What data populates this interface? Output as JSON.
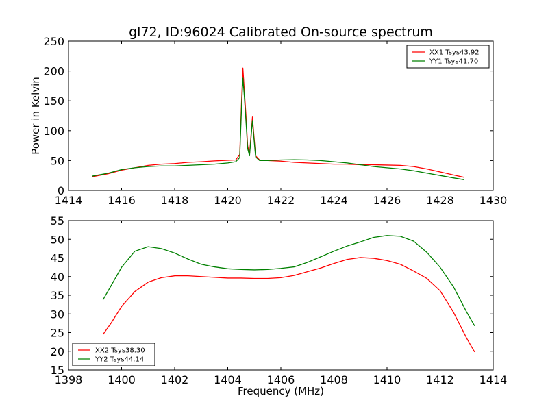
{
  "figure": {
    "title": "gl72, ID:96024 Calibrated On-source spectrum",
    "xlabel": "Frequency (MHz)"
  },
  "chart_data": [
    {
      "type": "line",
      "title": "gl72, ID:96024 Calibrated On-source spectrum",
      "xlabel": "",
      "ylabel": "Power in Kelvin",
      "xlim": [
        1414,
        1430
      ],
      "ylim": [
        0,
        250
      ],
      "xticks": [
        1414,
        1416,
        1418,
        1420,
        1422,
        1424,
        1426,
        1428,
        1430
      ],
      "yticks": [
        0,
        50,
        100,
        150,
        200,
        250
      ],
      "grid": false,
      "legend_position": "top-right",
      "series": [
        {
          "name": "XX1 Tsys43.92",
          "color": "#ff0000",
          "points": [
            [
              1414.9,
              23
            ],
            [
              1415.5,
              28
            ],
            [
              1416.0,
              34
            ],
            [
              1416.5,
              38
            ],
            [
              1417.0,
              42
            ],
            [
              1417.5,
              44
            ],
            [
              1418.0,
              45
            ],
            [
              1418.5,
              47
            ],
            [
              1419.0,
              48
            ],
            [
              1419.5,
              49.5
            ],
            [
              1420.0,
              50.5
            ],
            [
              1420.3,
              51
            ],
            [
              1420.45,
              60
            ],
            [
              1420.52,
              150
            ],
            [
              1420.57,
              205
            ],
            [
              1420.62,
              170
            ],
            [
              1420.68,
              130
            ],
            [
              1420.75,
              75
            ],
            [
              1420.82,
              60
            ],
            [
              1420.88,
              95
            ],
            [
              1420.93,
              123
            ],
            [
              1420.98,
              95
            ],
            [
              1421.05,
              58
            ],
            [
              1421.2,
              51
            ],
            [
              1421.5,
              50
            ],
            [
              1422.0,
              49
            ],
            [
              1422.5,
              47
            ],
            [
              1423.0,
              46
            ],
            [
              1423.5,
              45
            ],
            [
              1424.0,
              44
            ],
            [
              1424.5,
              44
            ],
            [
              1425.0,
              43
            ],
            [
              1425.5,
              43
            ],
            [
              1426.0,
              42.5
            ],
            [
              1426.5,
              42
            ],
            [
              1427.0,
              40
            ],
            [
              1427.5,
              36
            ],
            [
              1428.0,
              31
            ],
            [
              1428.5,
              26
            ],
            [
              1428.9,
              22
            ]
          ]
        },
        {
          "name": "YY1 Tsys41.70",
          "color": "#008000",
          "points": [
            [
              1414.9,
              24
            ],
            [
              1415.5,
              29
            ],
            [
              1416.0,
              35
            ],
            [
              1416.5,
              38
            ],
            [
              1417.0,
              40
            ],
            [
              1417.5,
              41
            ],
            [
              1418.0,
              41
            ],
            [
              1418.5,
              42
            ],
            [
              1419.0,
              43
            ],
            [
              1419.5,
              44
            ],
            [
              1420.0,
              46
            ],
            [
              1420.3,
              48
            ],
            [
              1420.45,
              55
            ],
            [
              1420.52,
              140
            ],
            [
              1420.57,
              188
            ],
            [
              1420.62,
              160
            ],
            [
              1420.68,
              120
            ],
            [
              1420.75,
              70
            ],
            [
              1420.82,
              58
            ],
            [
              1420.88,
              90
            ],
            [
              1420.93,
              117
            ],
            [
              1420.98,
              90
            ],
            [
              1421.05,
              56
            ],
            [
              1421.2,
              50
            ],
            [
              1421.5,
              50
            ],
            [
              1422.0,
              51
            ],
            [
              1422.5,
              51.5
            ],
            [
              1423.0,
              51
            ],
            [
              1423.5,
              50
            ],
            [
              1424.0,
              48
            ],
            [
              1424.5,
              46
            ],
            [
              1425.0,
              43
            ],
            [
              1425.5,
              40
            ],
            [
              1426.0,
              38
            ],
            [
              1426.5,
              36
            ],
            [
              1427.0,
              33
            ],
            [
              1427.5,
              29
            ],
            [
              1428.0,
              25
            ],
            [
              1428.5,
              21
            ],
            [
              1428.9,
              18
            ]
          ]
        }
      ]
    },
    {
      "type": "line",
      "title": "",
      "xlabel": "Frequency (MHz)",
      "ylabel": "",
      "xlim": [
        1398,
        1414
      ],
      "ylim": [
        15,
        55
      ],
      "xticks": [
        1398,
        1400,
        1402,
        1404,
        1406,
        1408,
        1410,
        1412,
        1414
      ],
      "yticks": [
        15,
        20,
        25,
        30,
        35,
        40,
        45,
        50,
        55
      ],
      "grid": false,
      "legend_position": "bottom-left",
      "series": [
        {
          "name": "XX2 Tsys38.30",
          "color": "#ff0000",
          "points": [
            [
              1399.3,
              24.5
            ],
            [
              1399.6,
              27.5
            ],
            [
              1400.0,
              32
            ],
            [
              1400.5,
              36
            ],
            [
              1401.0,
              38.5
            ],
            [
              1401.5,
              39.7
            ],
            [
              1402.0,
              40.2
            ],
            [
              1402.5,
              40.2
            ],
            [
              1403.0,
              40
            ],
            [
              1403.5,
              39.8
            ],
            [
              1404.0,
              39.6
            ],
            [
              1404.5,
              39.6
            ],
            [
              1405.0,
              39.5
            ],
            [
              1405.5,
              39.5
            ],
            [
              1406.0,
              39.7
            ],
            [
              1406.5,
              40.3
            ],
            [
              1407.0,
              41.3
            ],
            [
              1407.5,
              42.3
            ],
            [
              1408.0,
              43.5
            ],
            [
              1408.5,
              44.6
            ],
            [
              1409.0,
              45.1
            ],
            [
              1409.5,
              44.9
            ],
            [
              1410.0,
              44.3
            ],
            [
              1410.5,
              43.3
            ],
            [
              1411.0,
              41.5
            ],
            [
              1411.5,
              39.5
            ],
            [
              1412.0,
              36.2
            ],
            [
              1412.5,
              30.5
            ],
            [
              1413.0,
              23.5
            ],
            [
              1413.3,
              19.8
            ]
          ]
        },
        {
          "name": "YY2 Tsys44.14",
          "color": "#008000",
          "points": [
            [
              1399.3,
              33.8
            ],
            [
              1399.6,
              37.5
            ],
            [
              1400.0,
              42.5
            ],
            [
              1400.5,
              46.8
            ],
            [
              1401.0,
              48
            ],
            [
              1401.5,
              47.5
            ],
            [
              1402.0,
              46.3
            ],
            [
              1402.5,
              44.7
            ],
            [
              1403.0,
              43.3
            ],
            [
              1403.5,
              42.6
            ],
            [
              1404.0,
              42.1
            ],
            [
              1404.5,
              41.9
            ],
            [
              1405.0,
              41.8
            ],
            [
              1405.5,
              41.9
            ],
            [
              1406.0,
              42.2
            ],
            [
              1406.5,
              42.6
            ],
            [
              1407.0,
              43.8
            ],
            [
              1407.5,
              45.3
            ],
            [
              1408.0,
              46.8
            ],
            [
              1408.5,
              48.2
            ],
            [
              1409.0,
              49.3
            ],
            [
              1409.5,
              50.5
            ],
            [
              1410.0,
              51
            ],
            [
              1410.5,
              50.8
            ],
            [
              1411.0,
              49.5
            ],
            [
              1411.5,
              46.5
            ],
            [
              1412.0,
              42.5
            ],
            [
              1412.5,
              37.3
            ],
            [
              1413.0,
              30.5
            ],
            [
              1413.3,
              26.8
            ]
          ]
        }
      ]
    }
  ]
}
